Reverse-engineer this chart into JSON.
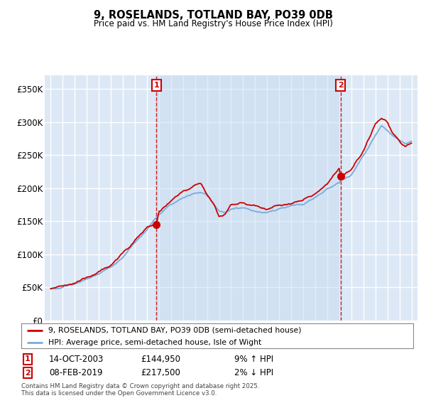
{
  "title": "9, ROSELANDS, TOTLAND BAY, PO39 0DB",
  "subtitle": "Price paid vs. HM Land Registry's House Price Index (HPI)",
  "legend_line1": "9, ROSELANDS, TOTLAND BAY, PO39 0DB (semi-detached house)",
  "legend_line2": "HPI: Average price, semi-detached house, Isle of Wight",
  "footnote": "Contains HM Land Registry data © Crown copyright and database right 2025.\nThis data is licensed under the Open Government Licence v3.0.",
  "annotation1_label": "1",
  "annotation1_date": "14-OCT-2003",
  "annotation1_price": "£144,950",
  "annotation1_hpi": "9% ↑ HPI",
  "annotation2_label": "2",
  "annotation2_date": "08-FEB-2019",
  "annotation2_price": "£217,500",
  "annotation2_hpi": "2% ↓ HPI",
  "marker1_x": 2003.79,
  "marker1_y": 144950,
  "marker2_x": 2019.1,
  "marker2_y": 217500,
  "dashed_line1_x": 2003.79,
  "dashed_line2_x": 2019.1,
  "ylim": [
    0,
    370000
  ],
  "xlim_start": 1994.5,
  "xlim_end": 2025.5,
  "yticks": [
    0,
    50000,
    100000,
    150000,
    200000,
    250000,
    300000,
    350000
  ],
  "ytick_labels": [
    "£0",
    "£50K",
    "£100K",
    "£150K",
    "£200K",
    "£250K",
    "£300K",
    "£350K"
  ],
  "plot_bg_color": "#dce8f5",
  "red_line_color": "#cc0000",
  "blue_line_color": "#7aabdb",
  "dashed_line_color": "#cc0000",
  "grid_color": "#ffffff",
  "annotation_box_color": "#cc0000",
  "shade_color": "#c8dcf0"
}
